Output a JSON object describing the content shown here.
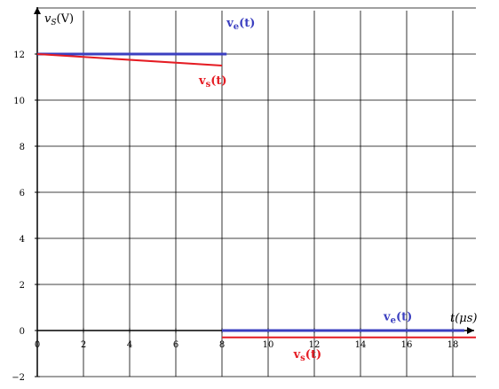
{
  "chart_data": {
    "type": "line",
    "ylabel": "v_S(V)",
    "xlabel": "t(μs)",
    "xlim": [
      0,
      19
    ],
    "ylim": [
      -2,
      14
    ],
    "x_ticks": [
      {
        "value": 0,
        "label": "0"
      },
      {
        "value": 2,
        "label": "2"
      },
      {
        "value": 4,
        "label": "4"
      },
      {
        "value": 6,
        "label": "6"
      },
      {
        "value": 8,
        "label": "8"
      },
      {
        "value": 10,
        "label": "10"
      },
      {
        "value": 12,
        "label": "12"
      },
      {
        "value": 14,
        "label": "14"
      },
      {
        "value": 16,
        "label": "16"
      },
      {
        "value": 18,
        "label": "18"
      }
    ],
    "y_ticks": [
      {
        "value": -2,
        "label": "−2"
      },
      {
        "value": 0,
        "label": "0"
      },
      {
        "value": 2,
        "label": "2"
      },
      {
        "value": 4,
        "label": "4"
      },
      {
        "value": 6,
        "label": "6"
      },
      {
        "value": 8,
        "label": "8"
      },
      {
        "value": 10,
        "label": "10"
      },
      {
        "value": 12,
        "label": "12"
      }
    ],
    "grid": true,
    "series": [
      {
        "name": "ve(t)",
        "color": "#3b3fc0",
        "segments": [
          [
            [
              0,
              12
            ],
            [
              8.2,
              12
            ]
          ],
          [
            [
              8,
              0
            ],
            [
              18.5,
              0
            ]
          ]
        ]
      },
      {
        "name": "vs(t)",
        "color": "#e51c23",
        "segments": [
          [
            [
              0,
              12
            ],
            [
              8,
              11.5
            ]
          ],
          [
            [
              8,
              -0.3
            ],
            [
              19,
              -0.3
            ]
          ]
        ]
      }
    ],
    "annotations": [
      {
        "series": 0,
        "text": "ve(t)",
        "at": [
          8.2,
          13.2
        ]
      },
      {
        "series": 1,
        "text": "vs(t)",
        "at": [
          7.0,
          10.7
        ]
      },
      {
        "series": 0,
        "text": "ve(t)",
        "at": [
          15.0,
          0.45
        ]
      },
      {
        "series": 1,
        "text": "vs(t)",
        "at": [
          11.1,
          -1.2
        ]
      }
    ]
  }
}
